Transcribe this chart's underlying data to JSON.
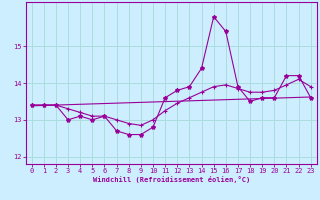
{
  "xlabel": "Windchill (Refroidissement éolien,°C)",
  "bg_color": "#cceeff",
  "grid_color": "#aadddd",
  "line_color": "#990099",
  "xlim": [
    -0.5,
    23.5
  ],
  "ylim": [
    11.8,
    16.2
  ],
  "yticks": [
    12,
    13,
    14,
    15
  ],
  "xticks": [
    0,
    1,
    2,
    3,
    4,
    5,
    6,
    7,
    8,
    9,
    10,
    11,
    12,
    13,
    14,
    15,
    16,
    17,
    18,
    19,
    20,
    21,
    22,
    23
  ],
  "star_x": [
    0,
    1,
    2,
    3,
    4,
    5,
    6,
    7,
    8,
    9,
    10,
    11,
    12,
    13,
    14,
    15,
    16,
    17,
    18,
    19,
    20,
    21,
    22,
    23
  ],
  "star_y": [
    13.4,
    13.4,
    13.4,
    13.0,
    13.1,
    13.0,
    13.1,
    12.7,
    12.6,
    12.6,
    12.8,
    13.6,
    13.8,
    13.9,
    14.4,
    15.8,
    15.4,
    13.9,
    13.5,
    13.6,
    13.6,
    14.2,
    14.2,
    13.6
  ],
  "plus_x": [
    0,
    1,
    2,
    3,
    4,
    5,
    6,
    7,
    8,
    9,
    10,
    11,
    12,
    13,
    14,
    15,
    16,
    17,
    18,
    19,
    20,
    21,
    22,
    23
  ],
  "plus_y": [
    13.4,
    13.4,
    13.4,
    13.3,
    13.2,
    13.1,
    13.1,
    13.0,
    12.9,
    12.85,
    13.0,
    13.25,
    13.45,
    13.6,
    13.75,
    13.9,
    13.95,
    13.85,
    13.75,
    13.75,
    13.8,
    13.95,
    14.1,
    13.9
  ],
  "trend_x": [
    0,
    23
  ],
  "trend_y": [
    13.38,
    13.62
  ]
}
